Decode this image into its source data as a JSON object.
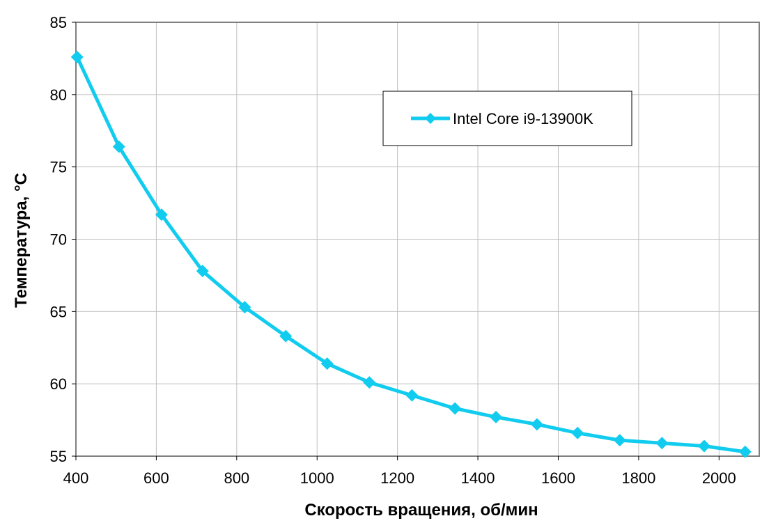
{
  "chart_data": {
    "type": "line",
    "title": "",
    "xlabel": "Скорость вращения, об/мин",
    "ylabel": "Температура, °C",
    "xlim": [
      400,
      2100
    ],
    "ylim": [
      55,
      85
    ],
    "xticks": [
      400,
      600,
      800,
      1000,
      1200,
      1400,
      1600,
      1800,
      2000
    ],
    "yticks": [
      55,
      60,
      65,
      70,
      75,
      80,
      85
    ],
    "grid": true,
    "legend_position": "top-right",
    "series": [
      {
        "name": "Intel Core i9-13900K",
        "color": "#11ccee",
        "x": [
          403,
          507,
          613,
          715,
          820,
          922,
          1025,
          1130,
          1236,
          1343,
          1445,
          1547,
          1648,
          1753,
          1858,
          1963,
          2065
        ],
        "y": [
          82.6,
          76.4,
          71.7,
          67.8,
          65.3,
          63.3,
          61.4,
          60.1,
          59.2,
          58.3,
          57.7,
          57.2,
          56.6,
          56.1,
          55.9,
          55.7,
          55.3
        ]
      }
    ]
  }
}
